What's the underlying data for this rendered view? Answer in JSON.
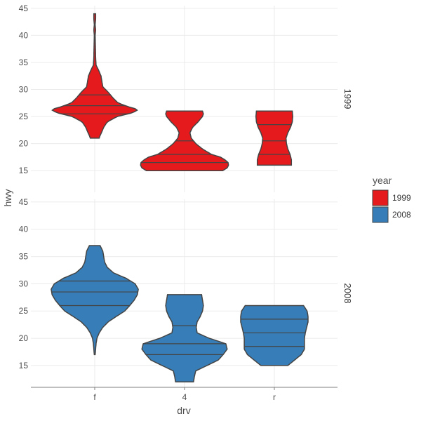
{
  "chart_data": {
    "type": "violin",
    "xlabel": "drv",
    "ylabel": "hwy",
    "categories": [
      "f",
      "4",
      "r"
    ],
    "ylim": [
      11,
      45.5
    ],
    "yticks": [
      15,
      20,
      25,
      30,
      35,
      40,
      45
    ],
    "grid": true,
    "facet_variable": "year",
    "facet_layout": "rows",
    "legend": {
      "title": "year",
      "placement": "right",
      "entries": [
        {
          "label": "1999",
          "color": "#e41a1c"
        },
        {
          "label": "2008",
          "color": "#377eb8"
        }
      ]
    },
    "panels": [
      {
        "strip_label": "1999",
        "fill": "#e41a1c",
        "violins": [
          {
            "category": "f",
            "quantiles": [
              25.5,
              27,
              29
            ],
            "profile": [
              [
                21,
                0.1
              ],
              [
                21.5,
                0.12
              ],
              [
                22,
                0.15
              ],
              [
                23,
                0.2
              ],
              [
                24,
                0.28
              ],
              [
                25,
                0.5
              ],
              [
                25.7,
                0.85
              ],
              [
                26.3,
                0.97
              ],
              [
                26.8,
                0.75
              ],
              [
                27.5,
                0.52
              ],
              [
                28.5,
                0.4
              ],
              [
                29.5,
                0.3
              ],
              [
                30.5,
                0.18
              ],
              [
                31.5,
                0.16
              ],
              [
                32.5,
                0.14
              ],
              [
                33.5,
                0.09
              ],
              [
                34.5,
                0.03
              ],
              [
                36,
                0.02
              ],
              [
                38,
                0.015
              ],
              [
                40,
                0.01
              ],
              [
                41,
                0.02
              ],
              [
                42,
                0.01
              ],
              [
                43,
                0.02
              ],
              [
                44,
                0.02
              ]
            ]
          },
          {
            "category": "4",
            "quantiles": [
              16.5,
              18,
              20.5
            ],
            "profile": [
              [
                15,
                0.85
              ],
              [
                15.5,
                0.95
              ],
              [
                16,
                0.98
              ],
              [
                16.5,
                0.97
              ],
              [
                17,
                0.9
              ],
              [
                17.5,
                0.8
              ],
              [
                18,
                0.6
              ],
              [
                19,
                0.4
              ],
              [
                20,
                0.25
              ],
              [
                21,
                0.15
              ],
              [
                22,
                0.12
              ],
              [
                23,
                0.18
              ],
              [
                24,
                0.3
              ],
              [
                25,
                0.4
              ],
              [
                25.5,
                0.42
              ],
              [
                26,
                0.4
              ]
            ]
          },
          {
            "category": "r",
            "quantiles": [
              18,
              20.5,
              23.5
            ],
            "profile": [
              [
                16,
                0.38
              ],
              [
                17,
                0.38
              ],
              [
                18,
                0.35
              ],
              [
                19,
                0.3
              ],
              [
                20,
                0.27
              ],
              [
                21,
                0.26
              ],
              [
                22,
                0.3
              ],
              [
                23,
                0.36
              ],
              [
                24,
                0.4
              ],
              [
                25,
                0.41
              ],
              [
                26,
                0.4
              ]
            ]
          }
        ]
      },
      {
        "strip_label": "2008",
        "fill": "#377eb8",
        "violins": [
          {
            "category": "f",
            "quantiles": [
              26,
              28.5,
              30.5
            ],
            "profile": [
              [
                17,
                0.01
              ],
              [
                18,
                0.02
              ],
              [
                19,
                0.03
              ],
              [
                20,
                0.05
              ],
              [
                21,
                0.1
              ],
              [
                22,
                0.18
              ],
              [
                23,
                0.3
              ],
              [
                24,
                0.48
              ],
              [
                25,
                0.67
              ],
              [
                26,
                0.78
              ],
              [
                27,
                0.88
              ],
              [
                28,
                0.95
              ],
              [
                29,
                0.97
              ],
              [
                30,
                0.9
              ],
              [
                31,
                0.7
              ],
              [
                32,
                0.42
              ],
              [
                33,
                0.28
              ],
              [
                34,
                0.22
              ],
              [
                35,
                0.2
              ],
              [
                36,
                0.18
              ],
              [
                37,
                0.12
              ]
            ]
          },
          {
            "category": "4",
            "quantiles": [
              17,
              19,
              22.3
            ],
            "profile": [
              [
                12,
                0.2
              ],
              [
                13,
                0.22
              ],
              [
                14,
                0.25
              ],
              [
                15,
                0.5
              ],
              [
                16,
                0.75
              ],
              [
                17,
                0.86
              ],
              [
                18,
                0.95
              ],
              [
                19,
                0.92
              ],
              [
                20,
                0.55
              ],
              [
                21,
                0.28
              ],
              [
                22,
                0.26
              ],
              [
                23,
                0.28
              ],
              [
                24,
                0.35
              ],
              [
                25,
                0.4
              ],
              [
                26,
                0.42
              ],
              [
                27,
                0.4
              ],
              [
                28,
                0.38
              ]
            ]
          },
          {
            "category": "r",
            "quantiles": [
              18.5,
              21,
              23.5
            ],
            "profile": [
              [
                15,
                0.3
              ],
              [
                16,
                0.45
              ],
              [
                17,
                0.6
              ],
              [
                18,
                0.67
              ],
              [
                19,
                0.67
              ],
              [
                20,
                0.67
              ],
              [
                21,
                0.69
              ],
              [
                22,
                0.72
              ],
              [
                23,
                0.75
              ],
              [
                24,
                0.75
              ],
              [
                25,
                0.73
              ],
              [
                26,
                0.65
              ]
            ]
          }
        ]
      }
    ]
  }
}
